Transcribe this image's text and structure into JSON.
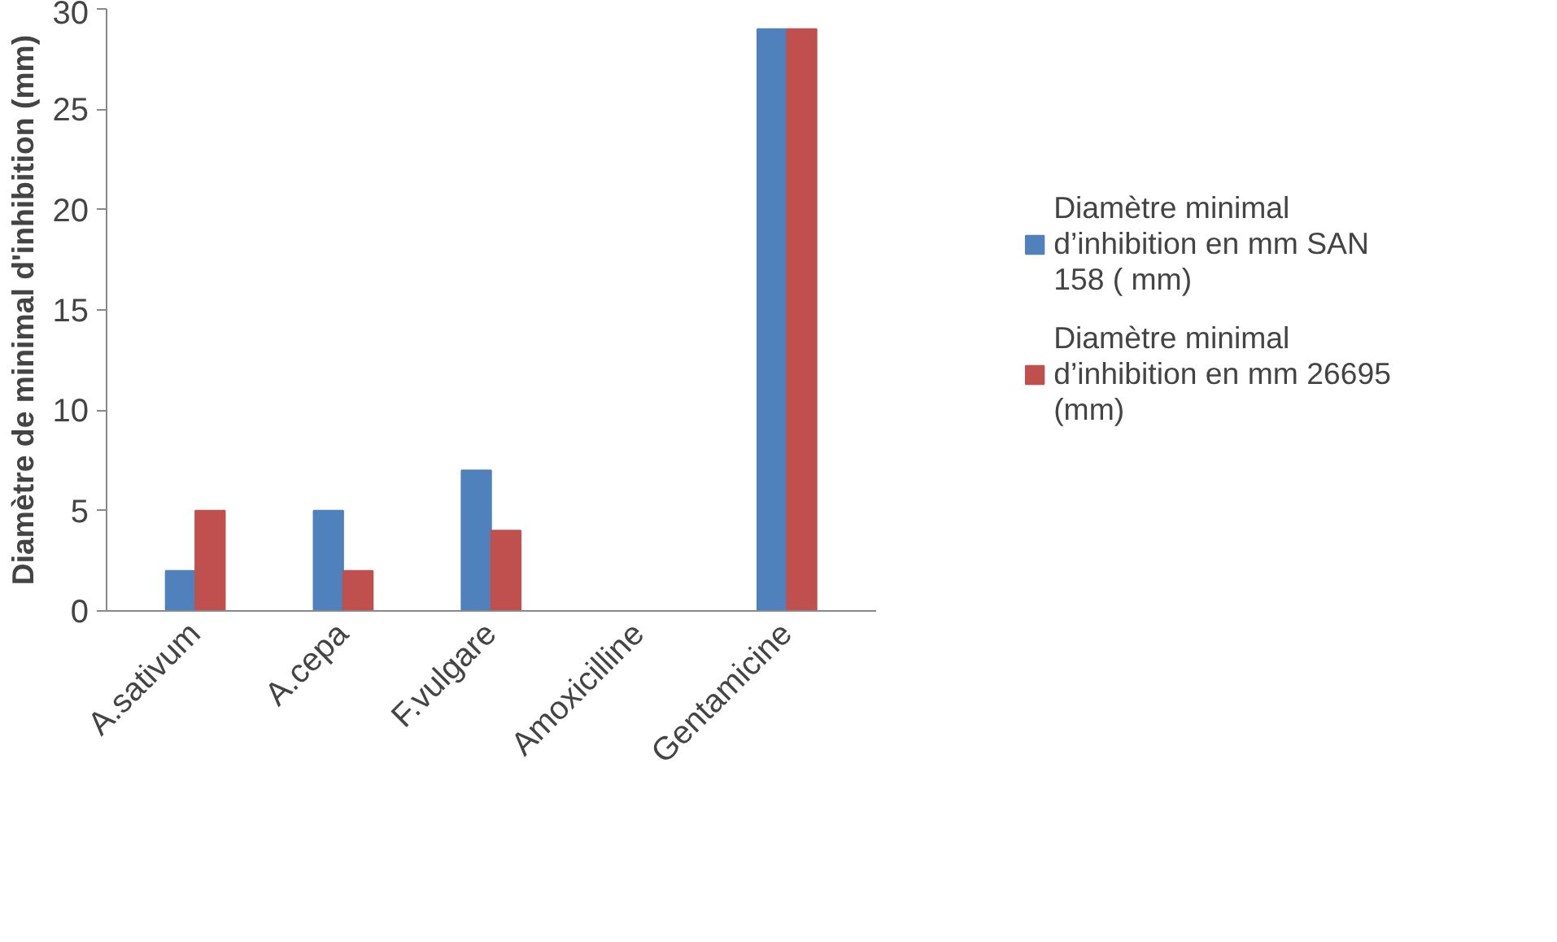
{
  "chart_data": {
    "type": "bar",
    "ylabel": "Diamètre de minimal d'inhibition (mm)",
    "categories": [
      "A.sativum",
      "A.cepa",
      "F.vulgare",
      "Amoxicilline",
      "Gentamicine"
    ],
    "series": [
      {
        "name": "Diamètre minimal d’inhibition en mm SAN 158 ( mm)",
        "color": "#4f81bd",
        "values": [
          2,
          5,
          7,
          0,
          29
        ]
      },
      {
        "name": "Diamètre minimal d’inhibition en mm 26695 (mm)",
        "color": "#c0504d",
        "values": [
          5,
          2,
          4,
          0,
          29
        ]
      }
    ],
    "ylim": [
      0,
      30
    ],
    "yticks": [
      0,
      5,
      10,
      15,
      20,
      25,
      30
    ],
    "grid": false,
    "legend": "right"
  }
}
